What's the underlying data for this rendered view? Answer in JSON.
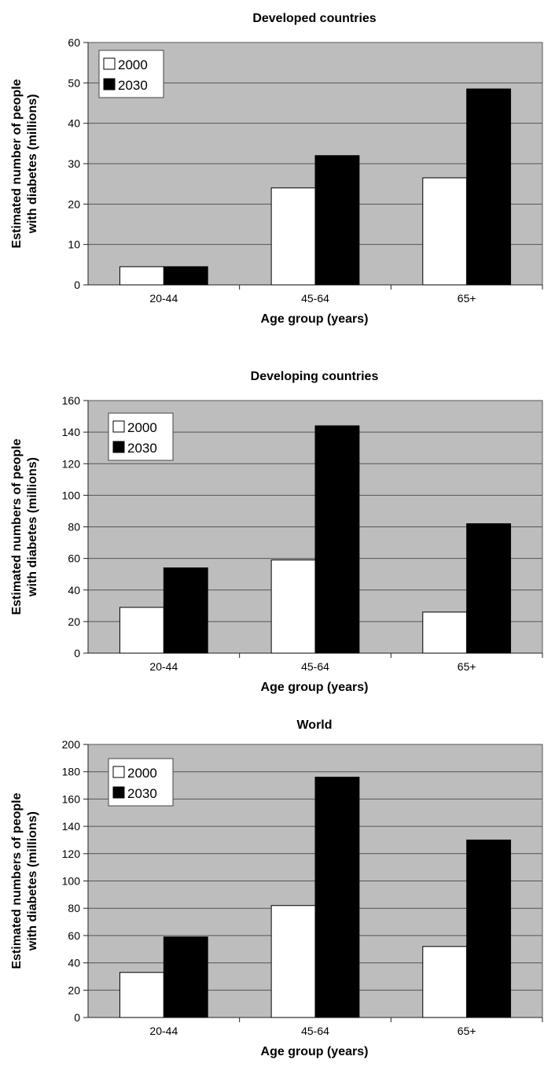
{
  "chart_data": [
    {
      "type": "bar",
      "title": "Developed countries",
      "xlabel": "Age group (years)",
      "ylabel": [
        "Estimated number of people",
        "with diabetes (millions)"
      ],
      "categories": [
        "20-44",
        "45-64",
        "65+"
      ],
      "series": [
        {
          "name": "2000",
          "values": [
            4.5,
            24,
            26.5
          ],
          "color": "#ffffff"
        },
        {
          "name": "2030",
          "values": [
            4.5,
            32,
            48.5
          ],
          "color": "#000000"
        }
      ],
      "ylim": [
        0,
        60
      ],
      "yticks": [
        0,
        10,
        20,
        30,
        40,
        50,
        60
      ],
      "grid": true,
      "legend": "top-left",
      "background": "#bdbdbd"
    },
    {
      "type": "bar",
      "title": "Developing countries",
      "xlabel": "Age group (years)",
      "ylabel": [
        "Estimated numbers of people",
        "with diabetes (millions)"
      ],
      "categories": [
        "20-44",
        "45-64",
        "65+"
      ],
      "series": [
        {
          "name": "2000",
          "values": [
            29,
            59,
            26
          ],
          "color": "#ffffff"
        },
        {
          "name": "2030",
          "values": [
            54,
            144,
            82
          ],
          "color": "#000000"
        }
      ],
      "ylim": [
        0,
        160
      ],
      "yticks": [
        0,
        20,
        40,
        60,
        80,
        100,
        120,
        140,
        160
      ],
      "grid": true,
      "legend": "top-left",
      "background": "#bdbdbd"
    },
    {
      "type": "bar",
      "title": "World",
      "xlabel": "Age group (years)",
      "ylabel": [
        "Estimated numbers of people",
        "with diabetes (millions)"
      ],
      "categories": [
        "20-44",
        "45-64",
        "65+"
      ],
      "series": [
        {
          "name": "2000",
          "values": [
            33,
            82,
            52
          ],
          "color": "#ffffff"
        },
        {
          "name": "2030",
          "values": [
            59,
            176,
            130
          ],
          "color": "#000000"
        }
      ],
      "ylim": [
        0,
        200
      ],
      "yticks": [
        0,
        20,
        40,
        60,
        80,
        100,
        120,
        140,
        160,
        180,
        200
      ],
      "grid": true,
      "legend": "top-left",
      "background": "#bdbdbd"
    }
  ]
}
